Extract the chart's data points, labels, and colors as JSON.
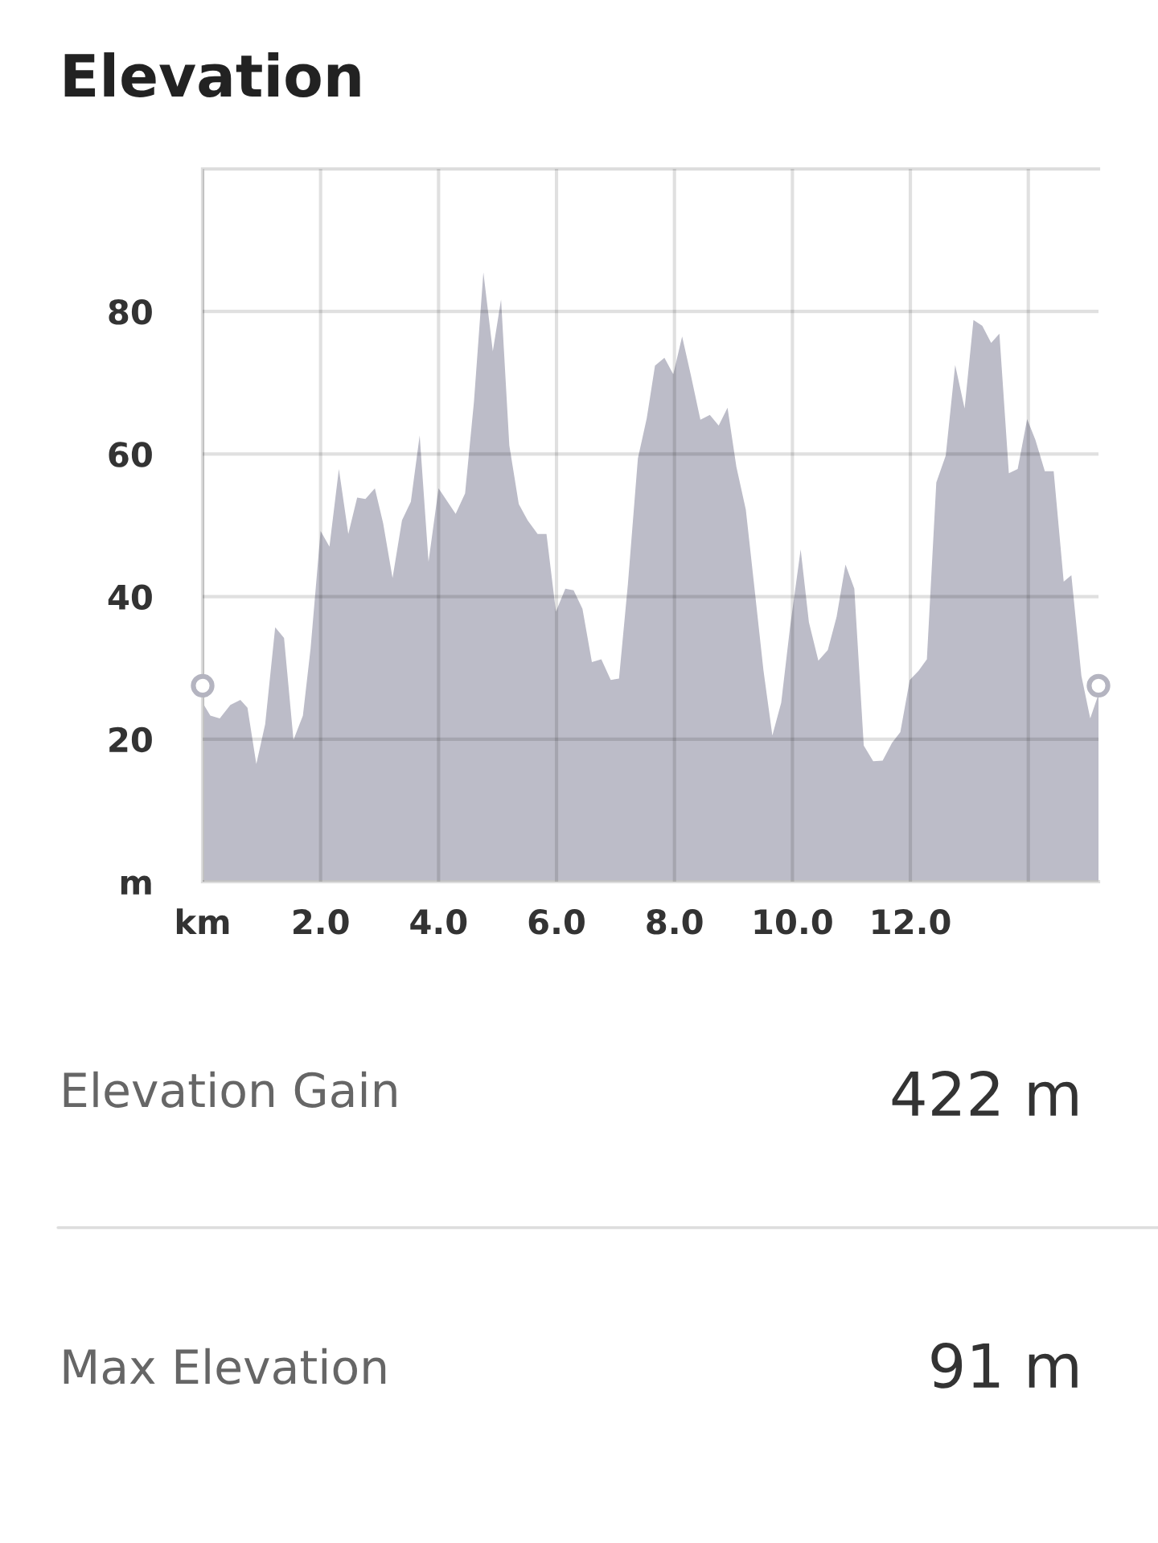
{
  "chart_data": {
    "type": "area",
    "title": "Elevation",
    "xlim": [
      0,
      15.19
    ],
    "xticks": [
      {
        "value": 0,
        "label": "km"
      },
      {
        "value": 2,
        "label": "2.0"
      },
      {
        "value": 4,
        "label": "4.0"
      },
      {
        "value": 6,
        "label": "6.0"
      },
      {
        "value": 8,
        "label": "8.0"
      },
      {
        "value": 10,
        "label": "10.0"
      },
      {
        "value": 12,
        "label": "12.0"
      },
      {
        "value": 14,
        "label": null
      }
    ],
    "ylim": [
      0,
      100
    ],
    "yticks": [
      {
        "value": 0,
        "label": "m"
      },
      20,
      40,
      60,
      80
    ],
    "grid": true,
    "series": [
      {
        "color": "#bcbcc8",
        "x": [
          0,
          0.13,
          0.29,
          0.47,
          0.64,
          0.76,
          0.91,
          1.06,
          1.23,
          1.38,
          1.54,
          1.7,
          1.83,
          2.0,
          2.15,
          2.31,
          2.47,
          2.62,
          2.76,
          2.92,
          3.06,
          3.22,
          3.38,
          3.53,
          3.68,
          3.83,
          4.0,
          4.29,
          4.45,
          4.6,
          4.76,
          4.92,
          5.06,
          5.2,
          5.36,
          5.51,
          5.68,
          5.83,
          5.99,
          6.15,
          6.29,
          6.44,
          6.6,
          6.76,
          6.92,
          7.06,
          7.21,
          7.38,
          7.53,
          7.67,
          7.83,
          7.98,
          8.13,
          8.28,
          8.44,
          8.6,
          8.75,
          8.9,
          9.05,
          9.21,
          9.35,
          9.51,
          9.66,
          9.81,
          9.96,
          10.14,
          10.28,
          10.44,
          10.6,
          10.75,
          10.9,
          11.05,
          11.21,
          11.37,
          11.53,
          11.69,
          11.83,
          11.99,
          12.14,
          12.28,
          12.44,
          12.6,
          12.76,
          12.92,
          13.07,
          13.22,
          13.37,
          13.51,
          13.67,
          13.82,
          13.98,
          14.12,
          14.28,
          14.43,
          14.6,
          14.73,
          14.9,
          15.05,
          15.19
        ],
        "values": [
          25.1,
          23.3,
          22.9,
          24.8,
          25.5,
          24.4,
          16.5,
          22.1,
          35.7,
          34.2,
          19.9,
          23.3,
          32.7,
          49.2,
          47.0,
          57.9,
          48.8,
          53.9,
          53.7,
          55.2,
          50.3,
          42.6,
          50.7,
          53.3,
          62.6,
          44.9,
          55.2,
          51.6,
          54.5,
          67.3,
          85.5,
          74.4,
          81.7,
          61.2,
          53.0,
          50.7,
          48.8,
          48.8,
          37.9,
          41.1,
          40.9,
          38.3,
          30.8,
          31.2,
          28.3,
          28.5,
          41.7,
          59.4,
          65.0,
          72.4,
          73.5,
          71.2,
          76.5,
          71.0,
          64.8,
          65.5,
          64.0,
          66.5,
          58.2,
          52.2,
          41.7,
          29.6,
          20.5,
          25.1,
          35.7,
          46.6,
          36.4,
          31.0,
          32.5,
          37.2,
          44.5,
          41.1,
          19.1,
          16.9,
          17.0,
          19.5,
          21.0,
          28.3,
          29.6,
          31.2,
          56.0,
          59.8,
          72.5,
          66.4,
          78.8,
          78.0,
          75.6,
          76.9,
          57.3,
          57.9,
          64.9,
          62.0,
          57.6,
          57.6,
          42.1,
          43.0,
          28.9,
          22.9,
          26.3
        ]
      },
      {
        "type": "scatter",
        "color": "#b4b4c0",
        "marker": "circle",
        "x": [
          0,
          15.19
        ],
        "values": [
          27.5,
          27.5
        ]
      }
    ],
    "annotations": [
      "Elevation Gain",
      "422 m",
      "Max Elevation",
      "91 m"
    ]
  }
}
